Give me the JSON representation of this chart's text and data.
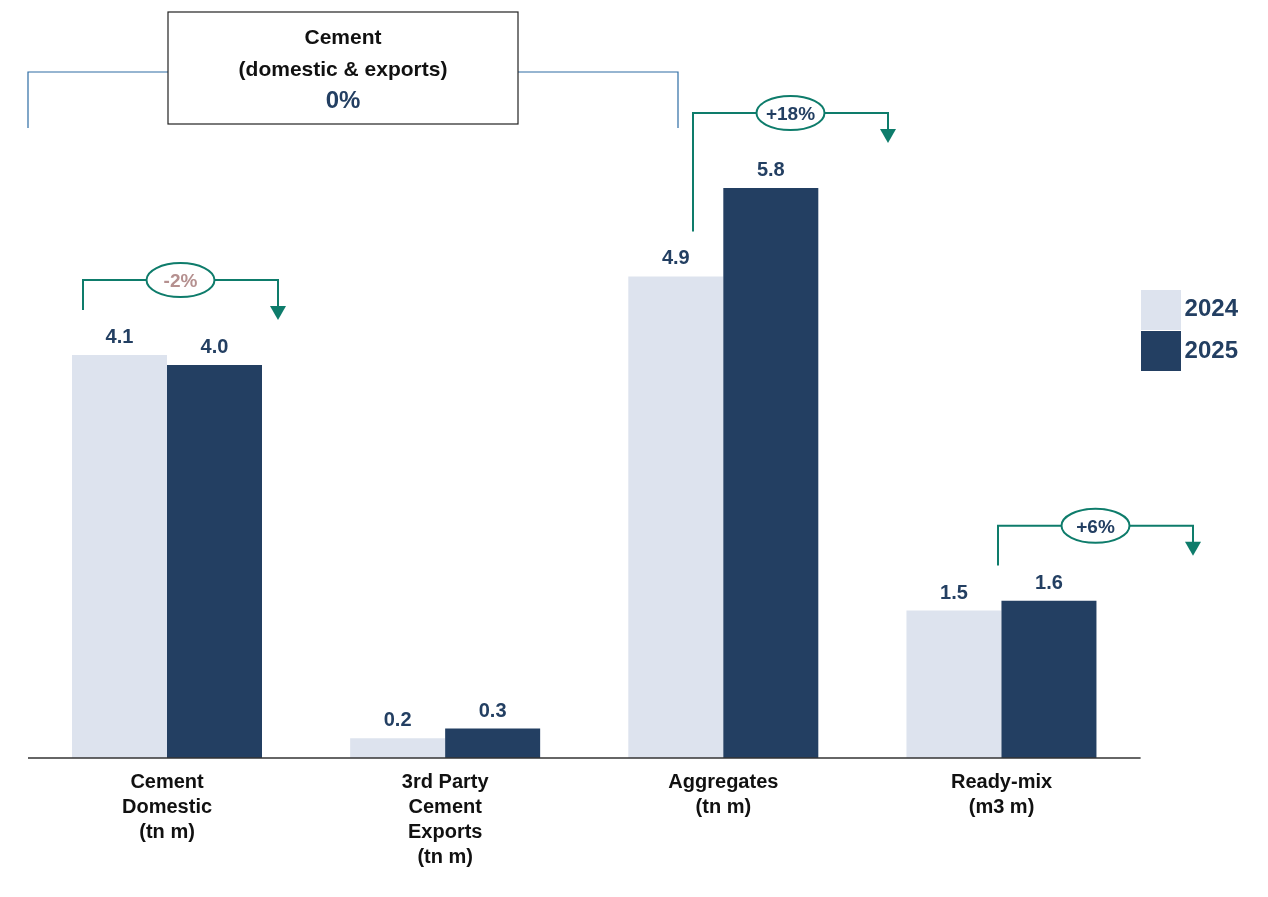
{
  "chart_data": {
    "type": "bar",
    "categories": [
      "Cement\nDomestic\n(tn m)",
      "3rd Party\nCement\nExports\n(tn m)",
      "Aggregates\n(tn m)",
      "Ready-mix\n(m3 m)"
    ],
    "series": [
      {
        "name": "2024",
        "color": "#dde3ee",
        "values": [
          4.1,
          0.2,
          4.9,
          1.5
        ],
        "value_labels": [
          "4.1",
          "0.2",
          "4.9",
          "1.5"
        ]
      },
      {
        "name": "2025",
        "color": "#233f62",
        "values": [
          4.0,
          0.3,
          5.8,
          1.6
        ],
        "value_labels": [
          "4.0",
          "0.3",
          "5.8",
          "1.6"
        ]
      }
    ],
    "legend": "right",
    "annotations": [
      "Cement\n(domestic & exports)\n0%",
      "-2%",
      "+18%",
      "+6%"
    ]
  }
}
